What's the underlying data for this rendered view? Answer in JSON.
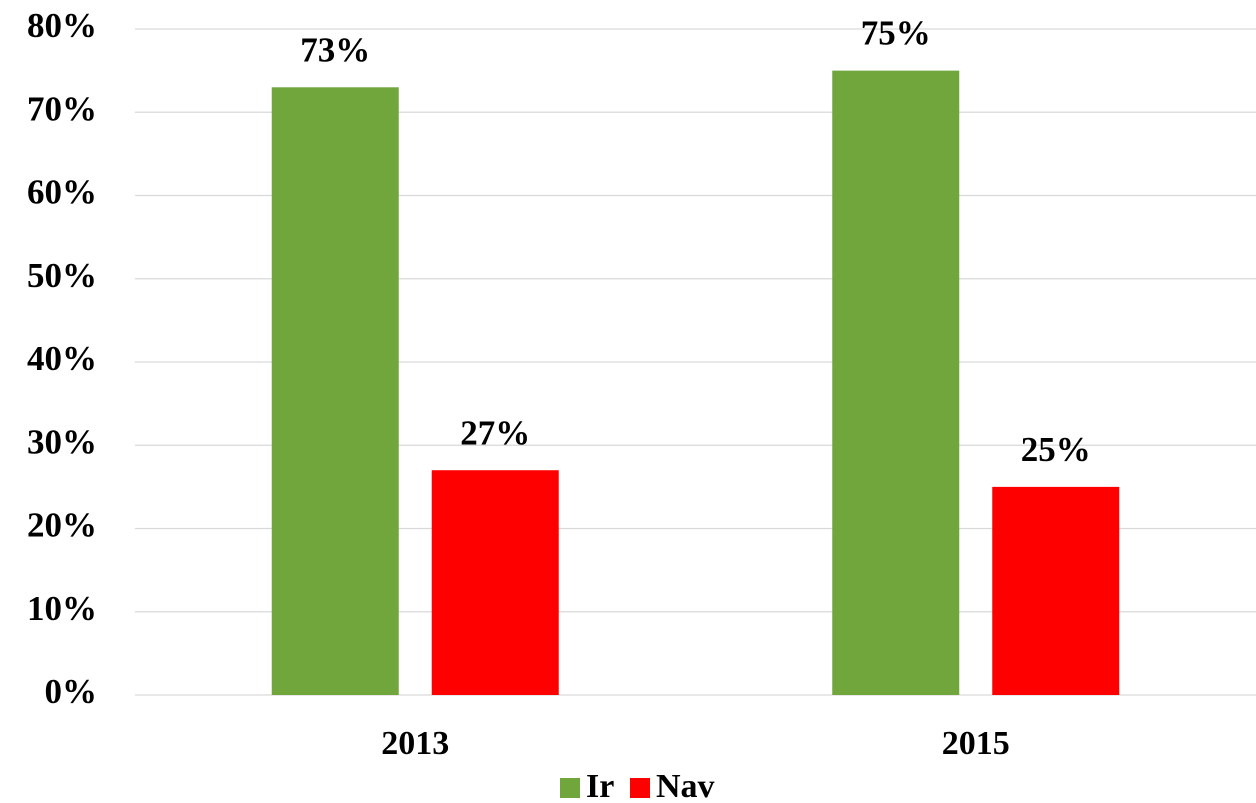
{
  "chart_data": {
    "type": "bar",
    "categories": [
      "2013",
      "2015"
    ],
    "series": [
      {
        "name": "Ir",
        "color": "#70a63c",
        "values": [
          73,
          75
        ],
        "value_labels": [
          "73%",
          "75%"
        ]
      },
      {
        "name": "Nav",
        "color": "#ff0000",
        "values": [
          27,
          25
        ],
        "value_labels": [
          "27%",
          "25%"
        ]
      }
    ],
    "ylim": [
      0,
      80
    ],
    "yticks": [
      {
        "value": 0,
        "label": "0%"
      },
      {
        "value": 10,
        "label": "10%"
      },
      {
        "value": 20,
        "label": "20%"
      },
      {
        "value": 30,
        "label": "30%"
      },
      {
        "value": 40,
        "label": "40%"
      },
      {
        "value": 50,
        "label": "50%"
      },
      {
        "value": 60,
        "label": "60%"
      },
      {
        "value": 70,
        "label": "70%"
      },
      {
        "value": 80,
        "label": "80%"
      }
    ],
    "grid": true,
    "legend": "bottom"
  }
}
